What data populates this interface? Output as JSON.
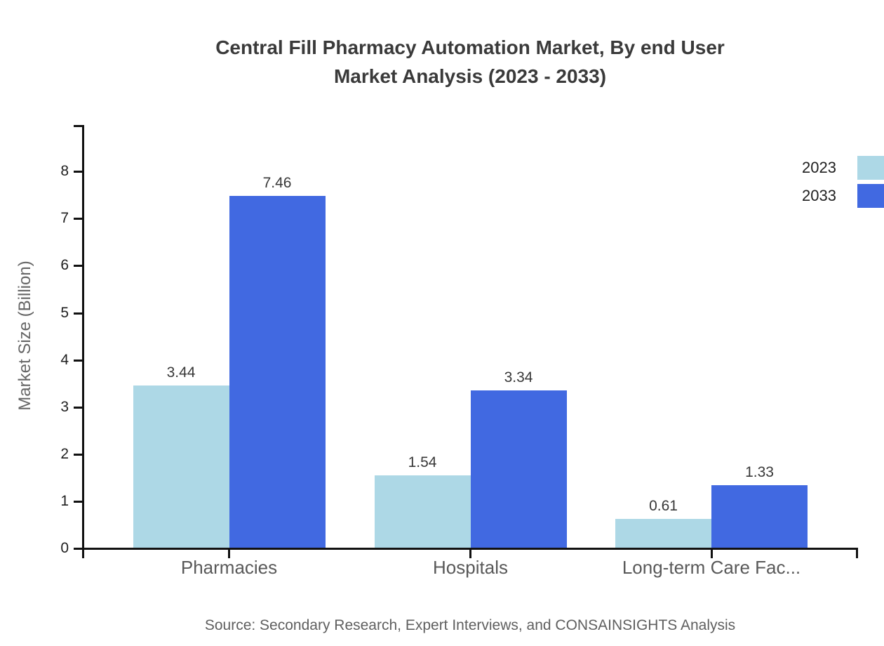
{
  "chart_data": {
    "type": "bar",
    "title": "Central Fill Pharmacy Automation Market, By end User\nMarket Analysis (2023 - 2033)",
    "categories": [
      "Pharmacies",
      "Hospitals",
      "Long-term Care Fac..."
    ],
    "series": [
      {
        "name": "2023",
        "color": "#ADD8E6",
        "values": [
          3.44,
          1.54,
          0.61
        ]
      },
      {
        "name": "2033",
        "color": "#4169E1",
        "values": [
          7.46,
          3.34,
          1.33
        ]
      }
    ],
    "value_labels": {
      "2023": [
        "3.44",
        "1.54",
        "0.61"
      ],
      "2033": [
        "7.46",
        "3.34",
        "1.33"
      ]
    },
    "ylabel": "Market Size (Billion)",
    "xlabel": "",
    "ylim": [
      0,
      9
    ],
    "yticks": [
      0,
      1,
      2,
      3,
      4,
      5,
      6,
      7,
      8
    ],
    "grid": false,
    "legend_position": "top-right",
    "source": "Source: Secondary Research, Expert Interviews, and CONSAINSIGHTS Analysis",
    "colors": {
      "axis": "#111111",
      "title_text": "#3a3a3a",
      "tick_text": "#1f1f1f",
      "category_text": "#595959",
      "value_text": "#383838",
      "muted_text": "#5f5f5f"
    }
  }
}
